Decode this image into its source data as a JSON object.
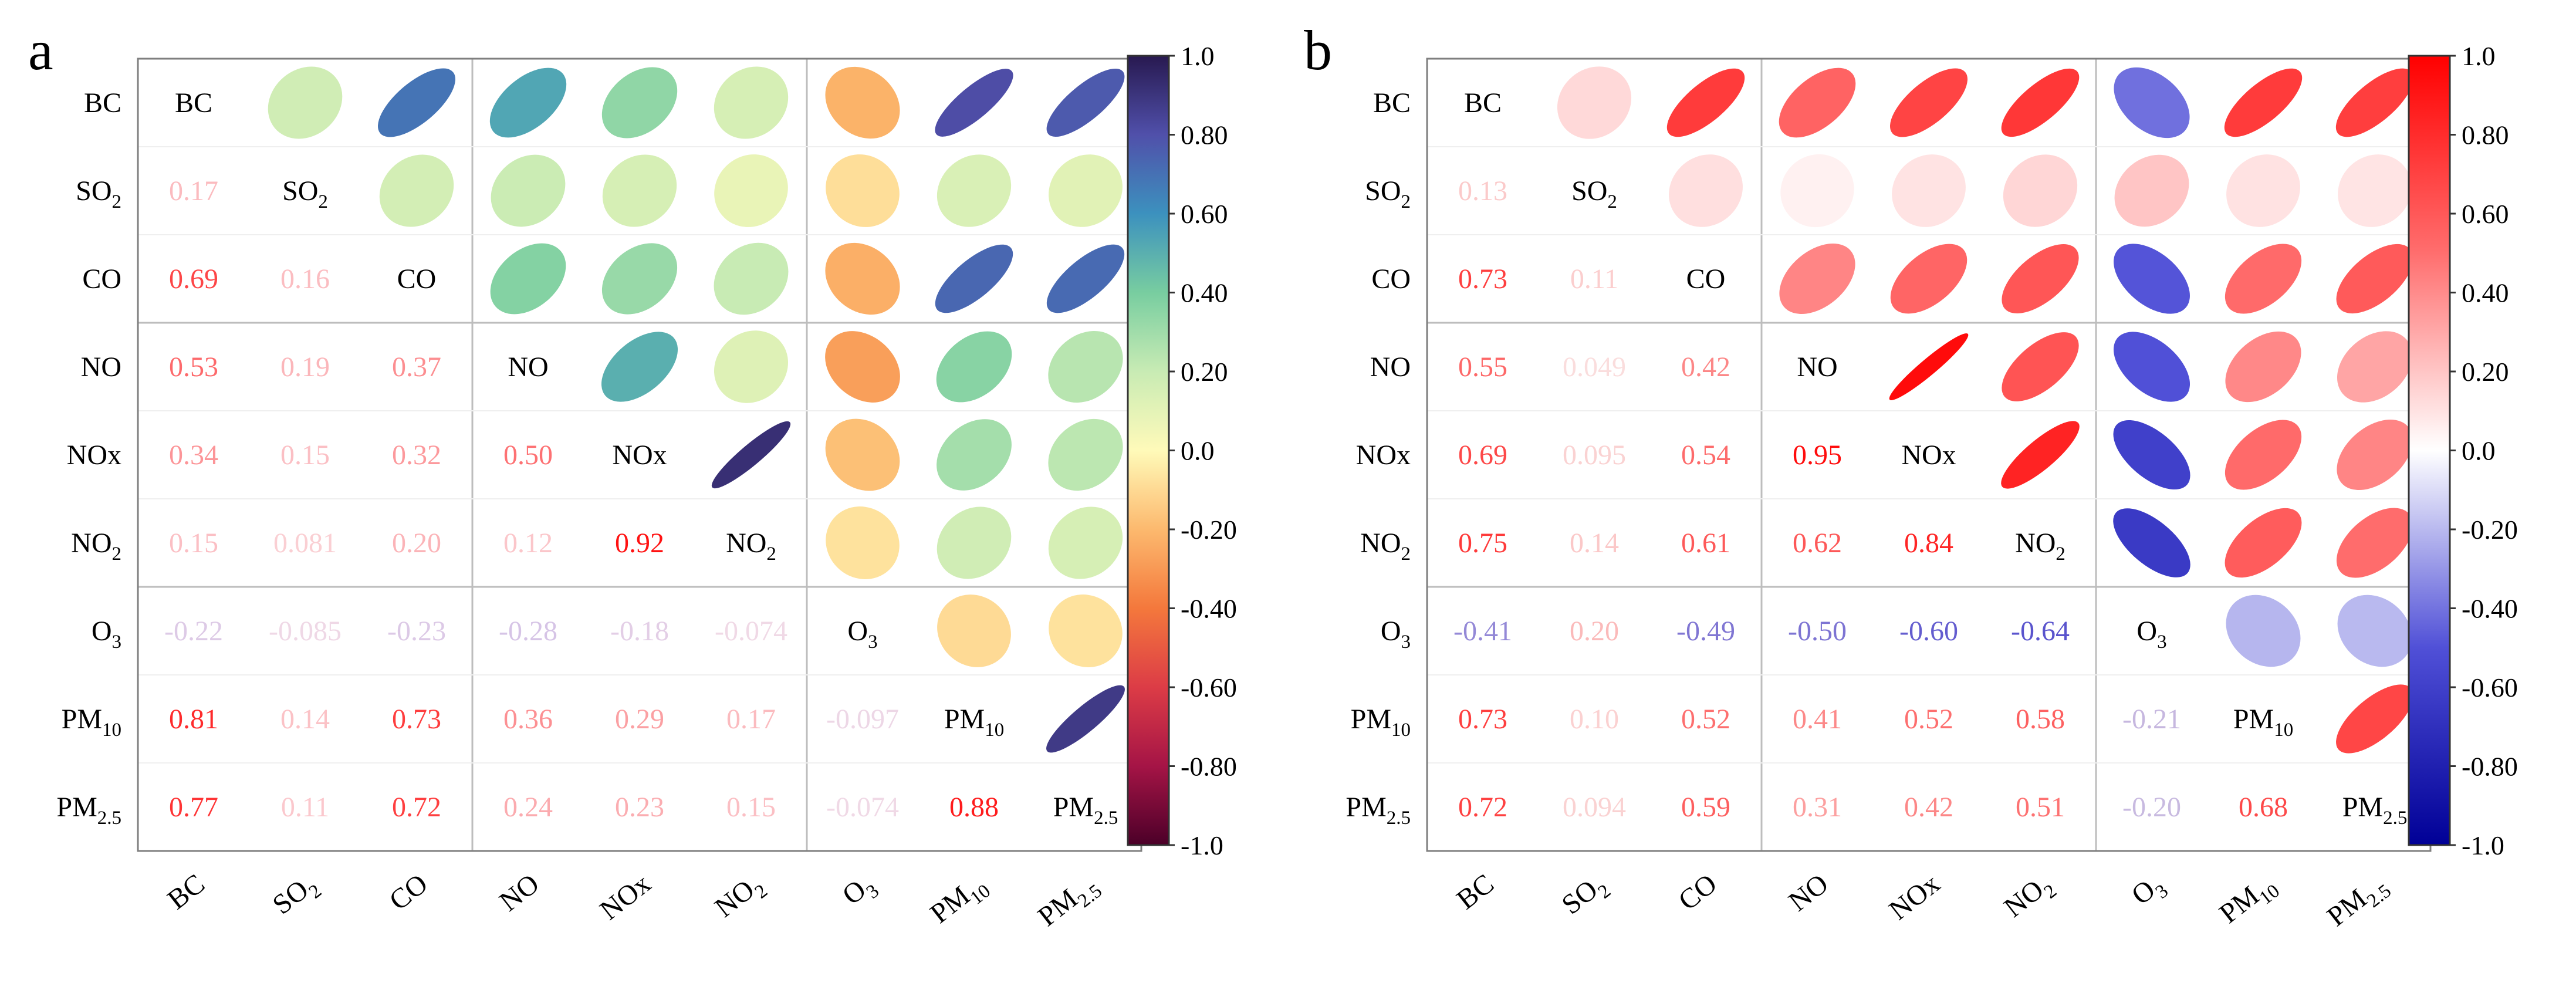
{
  "variables": [
    {
      "base": "BC",
      "sub": ""
    },
    {
      "base": "SO",
      "sub": "2"
    },
    {
      "base": "CO",
      "sub": ""
    },
    {
      "base": "NO",
      "sub": ""
    },
    {
      "base": "NOx",
      "sub": ""
    },
    {
      "base": "NO",
      "sub": "2"
    },
    {
      "base": "O",
      "sub": "3"
    },
    {
      "base": "PM",
      "sub": "10"
    },
    {
      "base": "PM",
      "sub": "2.5"
    }
  ],
  "colorbar_ticks": [
    "1.0",
    "0.80",
    "0.60",
    "0.40",
    "0.20",
    "0.0",
    "-0.20",
    "-0.40",
    "-0.60",
    "-0.80",
    "-1.0"
  ],
  "chart_data": [
    {
      "type": "heatmap",
      "panel_label": "a",
      "colormap": "spectral",
      "colorbar_range": [
        -1.0,
        1.0
      ],
      "matrix": [
        [
          1,
          0.17,
          0.69,
          0.53,
          0.34,
          0.15,
          -0.22,
          0.81,
          0.77
        ],
        [
          0.17,
          1,
          0.16,
          0.19,
          0.15,
          0.081,
          -0.085,
          0.14,
          0.11
        ],
        [
          0.69,
          0.16,
          1,
          0.37,
          0.32,
          0.2,
          -0.23,
          0.73,
          0.72
        ],
        [
          0.53,
          0.19,
          0.37,
          1,
          0.5,
          0.12,
          -0.28,
          0.36,
          0.24
        ],
        [
          0.34,
          0.15,
          0.32,
          0.5,
          1,
          0.92,
          -0.18,
          0.29,
          0.23
        ],
        [
          0.15,
          0.081,
          0.2,
          0.12,
          0.92,
          1,
          -0.074,
          0.17,
          0.15
        ],
        [
          -0.22,
          -0.085,
          -0.23,
          -0.28,
          -0.18,
          -0.074,
          1,
          -0.097,
          -0.074
        ],
        [
          0.81,
          0.14,
          0.73,
          0.36,
          0.29,
          0.17,
          -0.097,
          1,
          0.88
        ],
        [
          0.77,
          0.11,
          0.72,
          0.24,
          0.23,
          0.15,
          -0.074,
          0.88,
          1
        ]
      ],
      "lower_labels": [
        [
          null,
          null,
          null,
          null,
          null,
          null,
          null,
          null,
          null
        ],
        [
          "0.17",
          null,
          null,
          null,
          null,
          null,
          null,
          null,
          null
        ],
        [
          "0.69",
          "0.16",
          null,
          null,
          null,
          null,
          null,
          null,
          null
        ],
        [
          "0.53",
          "0.19",
          "0.37",
          null,
          null,
          null,
          null,
          null,
          null
        ],
        [
          "0.34",
          "0.15",
          "0.32",
          "0.50",
          null,
          null,
          null,
          null,
          null
        ],
        [
          "0.15",
          "0.081",
          "0.20",
          "0.12",
          "0.92",
          null,
          null,
          null,
          null
        ],
        [
          "-0.22",
          "-0.085",
          "-0.23",
          "-0.28",
          "-0.18",
          "-0.074",
          null,
          null,
          null
        ],
        [
          "0.81",
          "0.14",
          "0.73",
          "0.36",
          "0.29",
          "0.17",
          "-0.097",
          null,
          null
        ],
        [
          "0.77",
          "0.11",
          "0.72",
          "0.24",
          "0.23",
          "0.15",
          "-0.074",
          "0.88",
          null
        ]
      ]
    },
    {
      "type": "heatmap",
      "panel_label": "b",
      "colormap": "blue-white-red",
      "colorbar_range": [
        -1.0,
        1.0
      ],
      "matrix": [
        [
          1,
          0.13,
          0.73,
          0.55,
          0.69,
          0.75,
          -0.41,
          0.73,
          0.72
        ],
        [
          0.13,
          1,
          0.11,
          0.049,
          0.095,
          0.14,
          0.2,
          0.1,
          0.094
        ],
        [
          0.73,
          0.11,
          1,
          0.42,
          0.54,
          0.61,
          -0.49,
          0.52,
          0.59
        ],
        [
          0.55,
          0.049,
          0.42,
          1,
          0.95,
          0.62,
          -0.5,
          0.41,
          0.31
        ],
        [
          0.69,
          0.095,
          0.54,
          0.95,
          1,
          0.84,
          -0.6,
          0.52,
          0.42
        ],
        [
          0.75,
          0.14,
          0.61,
          0.62,
          0.84,
          1,
          -0.64,
          0.58,
          0.51
        ],
        [
          -0.41,
          0.2,
          -0.49,
          -0.5,
          -0.6,
          -0.64,
          1,
          -0.21,
          -0.2
        ],
        [
          0.73,
          0.1,
          0.52,
          0.41,
          0.52,
          0.58,
          -0.21,
          1,
          0.68
        ],
        [
          0.72,
          0.094,
          0.59,
          0.31,
          0.42,
          0.51,
          -0.2,
          0.68,
          1
        ]
      ],
      "lower_labels": [
        [
          null,
          null,
          null,
          null,
          null,
          null,
          null,
          null,
          null
        ],
        [
          "0.13",
          null,
          null,
          null,
          null,
          null,
          null,
          null,
          null
        ],
        [
          "0.73",
          "0.11",
          null,
          null,
          null,
          null,
          null,
          null,
          null
        ],
        [
          "0.55",
          "0.049",
          "0.42",
          null,
          null,
          null,
          null,
          null,
          null
        ],
        [
          "0.69",
          "0.095",
          "0.54",
          "0.95",
          null,
          null,
          null,
          null,
          null
        ],
        [
          "0.75",
          "0.14",
          "0.61",
          "0.62",
          "0.84",
          null,
          null,
          null,
          null
        ],
        [
          "-0.41",
          "0.20",
          "-0.49",
          "-0.50",
          "-0.60",
          "-0.64",
          null,
          null,
          null
        ],
        [
          "0.73",
          "0.10",
          "0.52",
          "0.41",
          "0.52",
          "0.58",
          "-0.21",
          null,
          null
        ],
        [
          "0.72",
          "0.094",
          "0.59",
          "0.31",
          "0.42",
          "0.51",
          "-0.20",
          "0.68",
          null
        ]
      ]
    }
  ]
}
